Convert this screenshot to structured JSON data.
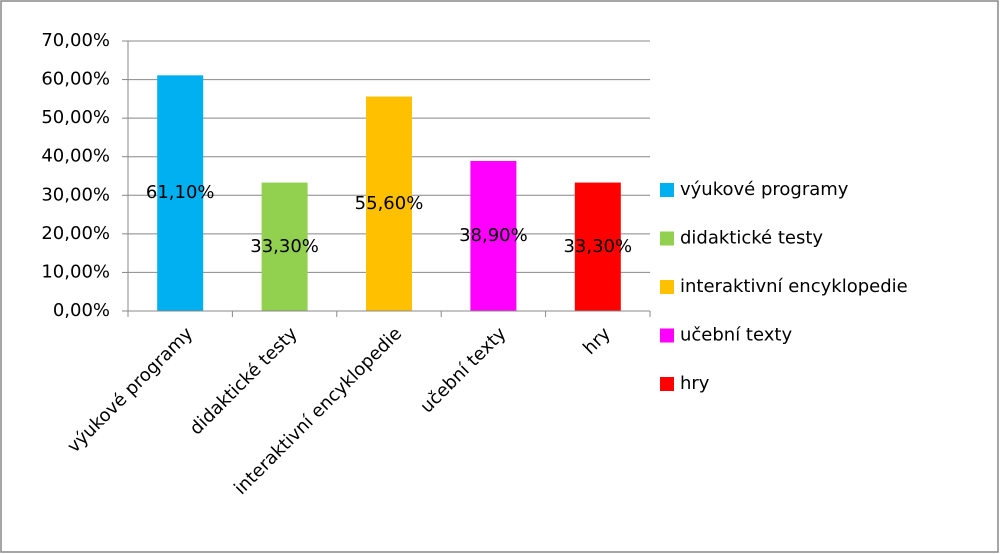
{
  "chart_data": {
    "type": "bar",
    "categories": [
      "výukové programy",
      "didaktické testy",
      "interaktivní encyklopedie",
      "učební texty",
      "hry"
    ],
    "values": [
      61.1,
      33.3,
      55.6,
      38.9,
      33.3
    ],
    "value_labels": [
      "61,10%",
      "33,30%",
      "55,60%",
      "38,90%",
      "33,30%"
    ],
    "colors": [
      "#00b0f0",
      "#92d050",
      "#ffc000",
      "#ff00ff",
      "#ff0000"
    ],
    "ylim": [
      0,
      70
    ],
    "yticks": [
      {
        "value": 0,
        "label": "0,00%"
      },
      {
        "value": 10,
        "label": "10,00%"
      },
      {
        "value": 20,
        "label": "20,00%"
      },
      {
        "value": 30,
        "label": "30,00%"
      },
      {
        "value": 40,
        "label": "40,00%"
      },
      {
        "value": 50,
        "label": "50,00%"
      },
      {
        "value": 60,
        "label": "60,00%"
      },
      {
        "value": 70,
        "label": "70,00%"
      }
    ],
    "grid": true,
    "legend": "right"
  }
}
